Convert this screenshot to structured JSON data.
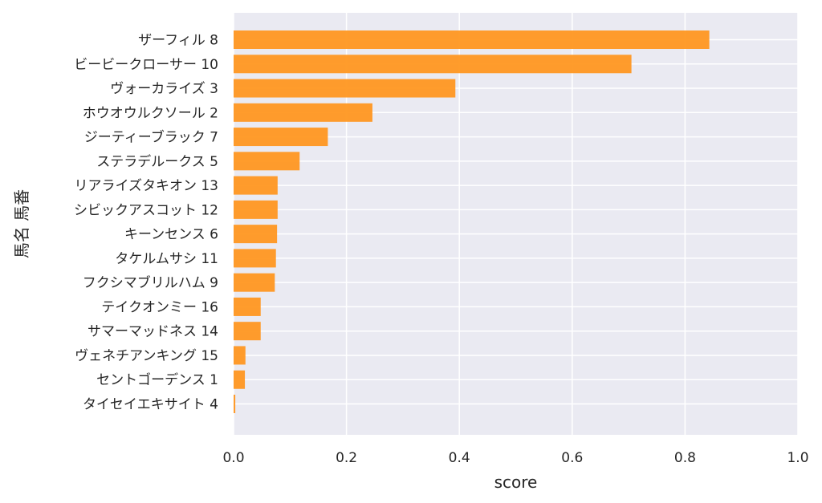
{
  "chart_data": {
    "type": "bar",
    "orientation": "horizontal",
    "xlabel": "score",
    "ylabel": "馬名 馬番",
    "xlim": [
      0.0,
      1.0
    ],
    "xticks": [
      "0.0",
      "0.2",
      "0.4",
      "0.6",
      "0.8",
      "1.0"
    ],
    "grid": true,
    "bar_color": "#ff9721",
    "background_color": "#eaeaf2",
    "categories": [
      "ザーフィル 8",
      "ビービークローサー 10",
      "ヴォーカライズ 3",
      "ホウオウルクソール 2",
      "ジーティーブラック 7",
      "ステラデルークス 5",
      "リアライズタキオン 13",
      "シビックアスコット 12",
      "キーンセンス 6",
      "タケルムサシ 11",
      "フクシマブリルハム 9",
      "テイクオンミー 16",
      "サマーマッドネス 14",
      "ヴェネチアンキング 15",
      "セントゴーデンス 1",
      "タイセイエキサイト 4"
    ],
    "values": [
      0.843,
      0.705,
      0.393,
      0.246,
      0.167,
      0.117,
      0.078,
      0.078,
      0.077,
      0.075,
      0.073,
      0.048,
      0.048,
      0.021,
      0.02,
      0.003
    ]
  }
}
